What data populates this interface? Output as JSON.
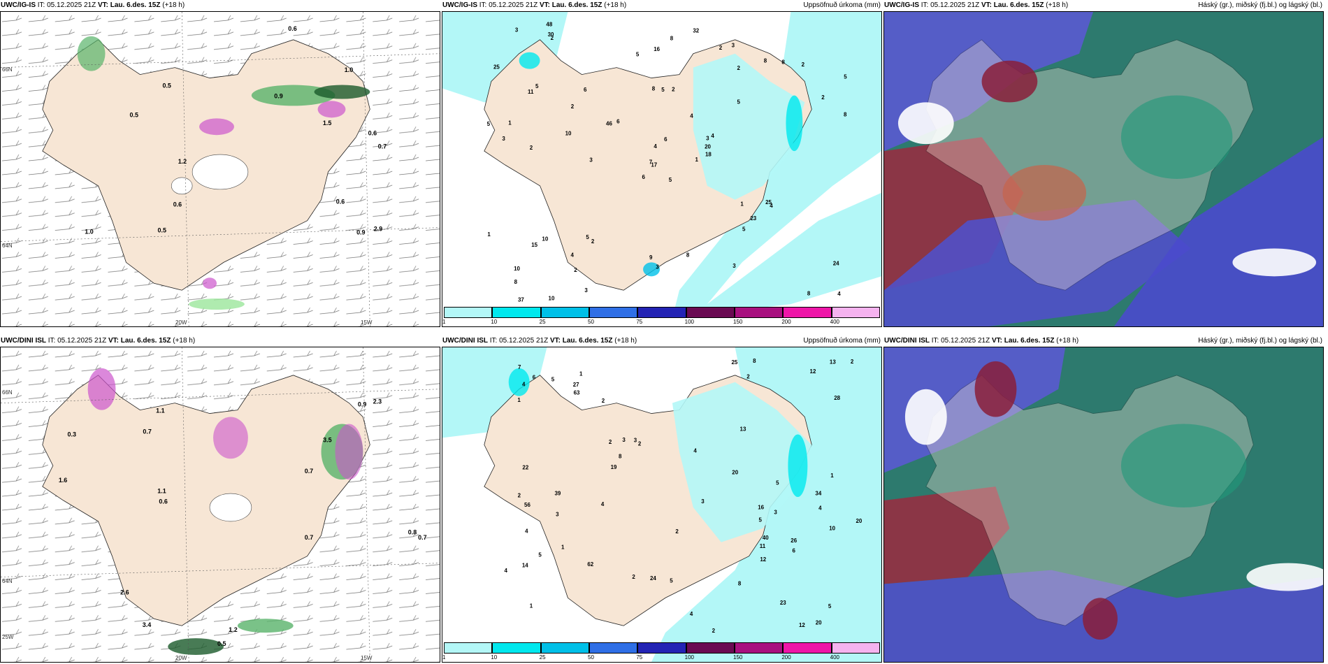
{
  "panels": [
    {
      "model": "UWC/IG-IS",
      "it": "IT: 05.12.2025 21Z",
      "vt": "VT: Lau. 6.des. 15Z",
      "lead": "(+18 h)",
      "right": ""
    },
    {
      "model": "UWC/IG-IS",
      "it": "IT: 05.12.2025 21Z",
      "vt": "VT: Lau. 6.des. 15Z",
      "lead": "(+18 h)",
      "right": "Uppsöfnuð úrkoma (mm)"
    },
    {
      "model": "UWC/IG-IS",
      "it": "IT: 05.12.2025 21Z",
      "vt": "VT: Lau. 6.des. 15Z",
      "lead": "(+18 h)",
      "right": "Háský (gr.), miðský (fj.bl.) og lágský (bl.)"
    },
    {
      "model": "UWC/DINI ISL",
      "it": "IT: 05.12.2025 21Z",
      "vt": "VT: Lau. 6.des. 15Z",
      "lead": "(+18 h)",
      "right": ""
    },
    {
      "model": "UWC/DINI ISL",
      "it": "IT: 05.12.2025 21Z",
      "vt": "VT: Lau. 6.des. 15Z",
      "lead": "(+18 h)",
      "right": "Uppsöfnuð úrkoma (mm)"
    },
    {
      "model": "UWC/DINI ISL",
      "it": "IT: 05.12.2025 21Z",
      "vt": "VT: Lau. 6.des. 15Z",
      "lead": "(+18 h)",
      "right": "Háský (gr.), miðský (fj.bl.) og lágský (bl.)"
    }
  ],
  "grid_labels": {
    "lat66": "66N",
    "lat64": "64N",
    "lon25": "25W",
    "lon20": "20W",
    "lon15": "15W"
  },
  "colorbar": {
    "ticks": [
      "1",
      "10",
      "25",
      "50",
      "75",
      "100",
      "150",
      "200",
      "400"
    ],
    "colors": [
      "#b3f7f7",
      "#00e8ee",
      "#00c0e8",
      "#2f6fe6",
      "#2323b4",
      "#6a0a52",
      "#a8107f",
      "#ee16a8",
      "#f5b3ef"
    ]
  },
  "precip_ig": {
    "values": [
      "5",
      "11",
      "17",
      "10",
      "3",
      "2",
      "3",
      "2",
      "2",
      "1",
      "2",
      "4",
      "2",
      "5",
      "6",
      "5",
      "10",
      "8",
      "4",
      "10",
      "6",
      "8",
      "2",
      "5",
      "4",
      "4",
      "5",
      "16",
      "3",
      "1",
      "8",
      "7",
      "9",
      "4",
      "6",
      "8",
      "5",
      "8",
      "24",
      "25",
      "32",
      "46",
      "10",
      "5",
      "3",
      "5",
      "20",
      "37",
      "3",
      "18",
      "15",
      "2",
      "25",
      "23",
      "3",
      "4",
      "30",
      "3",
      "8",
      "2",
      "8",
      "3",
      "1",
      "2",
      "8",
      "48",
      "2",
      "5",
      "6",
      "1"
    ]
  },
  "precip_dini": {
    "values": [
      "5",
      "4",
      "1",
      "1",
      "2",
      "23",
      "14",
      "2",
      "2",
      "2",
      "1",
      "2",
      "4",
      "5",
      "2",
      "1",
      "2",
      "3",
      "3",
      "1",
      "2",
      "12",
      "19",
      "10",
      "25",
      "27",
      "40",
      "56",
      "63",
      "5",
      "4",
      "8",
      "8",
      "4",
      "34",
      "6",
      "11",
      "39",
      "5",
      "5",
      "28",
      "8",
      "20",
      "24",
      "26",
      "62",
      "4",
      "6",
      "20",
      "22",
      "20",
      "3",
      "13",
      "16",
      "12",
      "12",
      "13",
      "7",
      "3",
      "5",
      "3",
      "2",
      "4",
      "4"
    ]
  },
  "wind_labels_ig": [
    "0.5",
    "0.6",
    "0.9",
    "0.7",
    "1.2",
    "2.9",
    "0.6",
    "0.6",
    "0.9",
    "1.0",
    "0.5",
    "0.6",
    "1.5",
    "0.5",
    "1.0"
  ],
  "wind_labels_dini": [
    "0.3",
    "0.7",
    "0.7",
    "1.2",
    "0.9",
    "0.5",
    "0.7",
    "0.6",
    "2.3",
    "0.7",
    "0.8",
    "1.1",
    "3.5",
    "2.6",
    "1.6",
    "3.4",
    "1.1"
  ]
}
